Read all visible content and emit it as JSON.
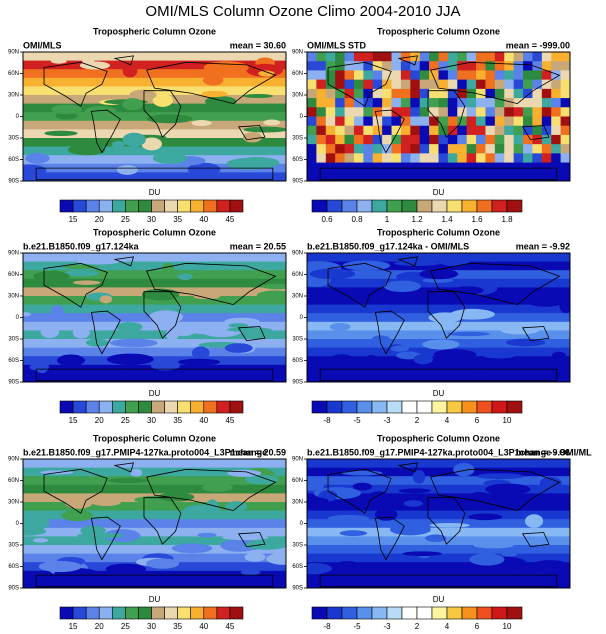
{
  "title": "OMI/MLS Column Ozone Climo 2004-2010 JJA",
  "lat_ticks": [
    "90N",
    "60N",
    "30N",
    "0",
    "30S",
    "60S",
    "90S"
  ],
  "panels": [
    {
      "subtitle": "Tropospheric Column Ozone",
      "left": "OMI/MLS",
      "right": "mean =  30.60",
      "colorbar": {
        "label": "DU",
        "ticks": [
          15,
          20,
          25,
          30,
          35,
          40,
          45
        ],
        "colors": [
          "#0a0ab4",
          "#2848d8",
          "#5a82e8",
          "#8cb0f0",
          "#3ca8a0",
          "#40a050",
          "#2e8a3e",
          "#c8a878",
          "#ecd8b0",
          "#f8e070",
          "#f8b030",
          "#f07020",
          "#d02020",
          "#a01010"
        ]
      }
    },
    {
      "subtitle": "Tropospheric Column Ozone",
      "left": "OMI/MLS STD",
      "right": "mean = -999.00",
      "colorbar": {
        "label": "DU",
        "ticks": [
          0.6,
          0.8,
          1,
          1.2,
          1.4,
          1.6,
          1.8
        ],
        "colors": [
          "#0a0ab4",
          "#2848d8",
          "#5a82e8",
          "#8cb0f0",
          "#3ca8a0",
          "#40a050",
          "#2e8a3e",
          "#c8a878",
          "#ecd8b0",
          "#f8e070",
          "#f8b030",
          "#f07020",
          "#d02020",
          "#a01010"
        ]
      }
    },
    {
      "subtitle": "Tropospheric Column Ozone",
      "left": "b.e21.B1850.f09_g17.124ka",
      "right": "mean =  20.55",
      "colorbar": {
        "label": "DU",
        "ticks": [
          15,
          20,
          25,
          30,
          35,
          40,
          45
        ],
        "colors": [
          "#0a0ab4",
          "#2848d8",
          "#5a82e8",
          "#8cb0f0",
          "#3ca8a0",
          "#40a050",
          "#2e8a3e",
          "#c8a878",
          "#ecd8b0",
          "#f8e070",
          "#f8b030",
          "#f07020",
          "#d02020",
          "#a01010"
        ]
      }
    },
    {
      "subtitle": "Tropospheric Column Ozone",
      "left": "b.e21.B1850.f09_g17.124ka - OMI/MLS",
      "right": "mean =  -9.92",
      "colorbar": {
        "label": "DU",
        "ticks": [
          -8,
          -5,
          -3,
          2,
          4,
          6,
          10
        ],
        "colors": [
          "#0a0ab4",
          "#1838d0",
          "#3060e0",
          "#5890ec",
          "#88b8f4",
          "#b8dcf8",
          "#ffffff",
          "#ffffff",
          "#fff4a0",
          "#f8c840",
          "#f89020",
          "#f05020",
          "#d01818",
          "#a01010"
        ]
      }
    },
    {
      "subtitle": "Tropospheric Column Ozone",
      "left": "b.e21.B1850.f09_g17.PMIP4-127ka.proto004_L3P1change",
      "right": "mean =  20.59",
      "colorbar": {
        "label": "DU",
        "ticks": [
          15,
          20,
          25,
          30,
          35,
          40,
          45
        ],
        "colors": [
          "#0a0ab4",
          "#2848d8",
          "#5a82e8",
          "#8cb0f0",
          "#3ca8a0",
          "#40a050",
          "#2e8a3e",
          "#c8a878",
          "#ecd8b0",
          "#f8e070",
          "#f8b030",
          "#f07020",
          "#d02020",
          "#a01010"
        ]
      }
    },
    {
      "subtitle": "Tropospheric Column Ozone",
      "left": "b.e21.B1850.f09_g17.PMIP4-127ka.proto004_L3P1change - OMI/ML",
      "right": "mean =  -9.96",
      "colorbar": {
        "label": "DU",
        "ticks": [
          -8,
          -5,
          -3,
          2,
          4,
          6,
          10
        ],
        "colors": [
          "#0a0ab4",
          "#1838d0",
          "#3060e0",
          "#5890ec",
          "#88b8f4",
          "#b8dcf8",
          "#ffffff",
          "#ffffff",
          "#fff4a0",
          "#f8c840",
          "#f89020",
          "#f05020",
          "#d01818",
          "#a01010"
        ]
      }
    }
  ]
}
